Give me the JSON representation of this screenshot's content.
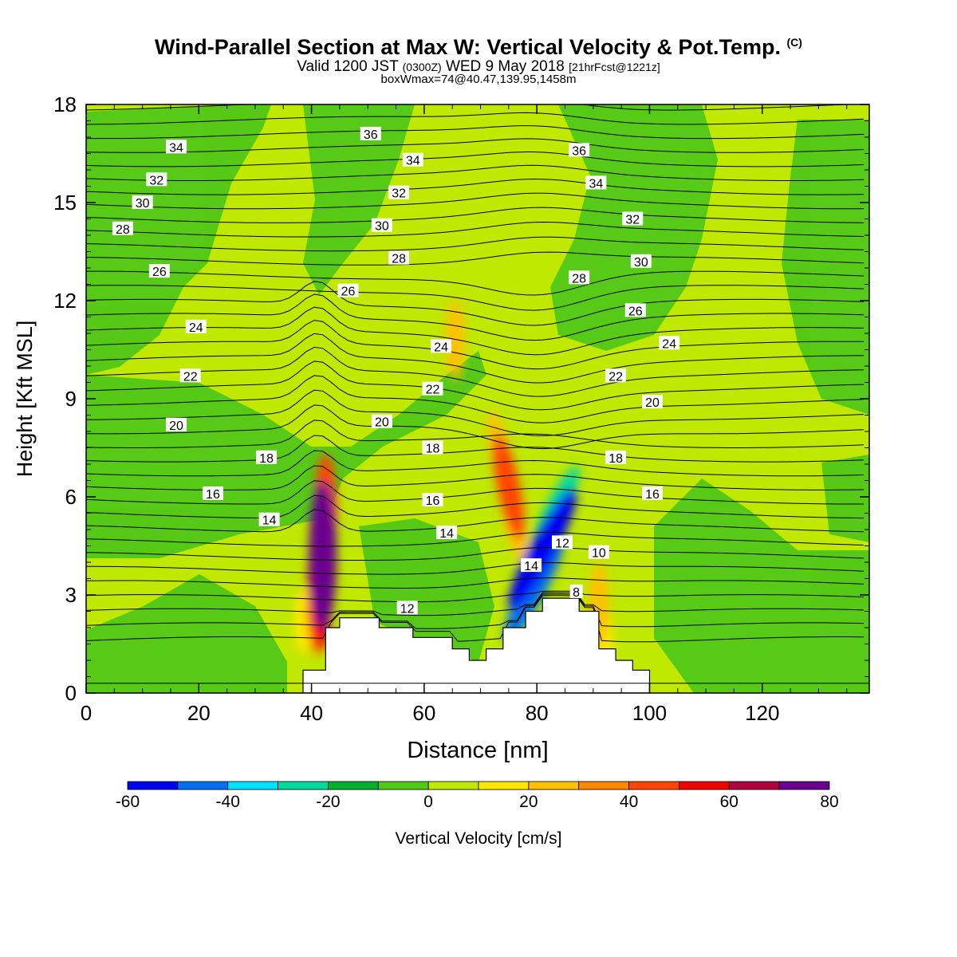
{
  "header": {
    "title_main": "Wind-Parallel Section at Max W: Vertical Velocity & Pot.Temp.",
    "title_mark": "(C)",
    "subtitle_a": "Valid 1200 JST",
    "subtitle_b": "(0300Z)",
    "subtitle_c": "WED 9 May 2018",
    "subtitle_d": "[21hrFcst@1221z]",
    "subtitle_line3": "boxWmax=74@40.47,139.95,1458m"
  },
  "chart_data": {
    "type": "heatmap",
    "xlabel": "Distance [nm]",
    "ylabel": "Height [Kft MSL]",
    "xlim": [
      0,
      139
    ],
    "ylim": [
      0,
      18
    ],
    "x_ticks": [
      0,
      20,
      40,
      60,
      80,
      100,
      120
    ],
    "y_ticks": [
      0,
      3,
      6,
      9,
      12,
      15,
      18
    ],
    "colorbar": {
      "label": "Vertical Velocity [cm/s]",
      "range": [
        -60,
        80
      ],
      "step": 10,
      "tick_labels": [
        "-60",
        "-40",
        "-20",
        "0",
        "20",
        "40",
        "60",
        "80"
      ],
      "colors": [
        "#0000f0",
        "#0070f0",
        "#00e0ff",
        "#00d8a0",
        "#00b030",
        "#50c818",
        "#c0e800",
        "#ffe800",
        "#ffc000",
        "#ff8800",
        "#ff4400",
        "#f00000",
        "#b00040",
        "#6a0090"
      ]
    },
    "terrain": [
      [
        38.5,
        0.7
      ],
      [
        39.5,
        0.7
      ],
      [
        39.5,
        0.7
      ],
      [
        42.5,
        0.7
      ],
      [
        42.5,
        2
      ],
      [
        45,
        2
      ],
      [
        45,
        2.3
      ],
      [
        52,
        2.3
      ],
      [
        52,
        2
      ],
      [
        58,
        2
      ],
      [
        58,
        1.7
      ],
      [
        65,
        1.7
      ],
      [
        65,
        1.35
      ],
      [
        68,
        1.35
      ],
      [
        68,
        1
      ],
      [
        71,
        1
      ],
      [
        71,
        1.35
      ],
      [
        74,
        1.35
      ],
      [
        74,
        2
      ],
      [
        78,
        2
      ],
      [
        78,
        2.5
      ],
      [
        81,
        2.5
      ],
      [
        81,
        2.9
      ],
      [
        87.5,
        2.9
      ],
      [
        87.5,
        2.5
      ],
      [
        91,
        2.5
      ],
      [
        91,
        1.35
      ],
      [
        94,
        1.35
      ],
      [
        94,
        1
      ],
      [
        97,
        1
      ],
      [
        97,
        0.7
      ],
      [
        100,
        0.7
      ],
      [
        100,
        0.3
      ]
    ],
    "w_cells": [
      {
        "x": 42,
        "y": 4.2,
        "w": 70
      },
      {
        "x": 41.5,
        "y": 3.2,
        "w": 55
      },
      {
        "x": 42.5,
        "y": 5.6,
        "w": 45
      },
      {
        "x": 41,
        "y": 2.6,
        "w": 32
      },
      {
        "x": 38.5,
        "y": 2.2,
        "w": 12
      },
      {
        "x": 75,
        "y": 6.3,
        "w": 42
      },
      {
        "x": 73.5,
        "y": 7.4,
        "w": 22
      },
      {
        "x": 76,
        "y": 5.2,
        "w": 20
      },
      {
        "x": 81,
        "y": 4.4,
        "w": -62
      },
      {
        "x": 79.5,
        "y": 3.2,
        "w": -50
      },
      {
        "x": 83.5,
        "y": 5.7,
        "w": -30
      },
      {
        "x": 78,
        "y": 2.6,
        "w": -22
      },
      {
        "x": 91,
        "y": 2.7,
        "w": 25
      },
      {
        "x": 92,
        "y": 1.5,
        "w": 15
      },
      {
        "x": 65.5,
        "y": 10.8,
        "w": 22
      }
    ],
    "theta_labels": [
      {
        "x": 16,
        "y": 16.7,
        "v": "34"
      },
      {
        "x": 12.5,
        "y": 15.7,
        "v": "32"
      },
      {
        "x": 10,
        "y": 15,
        "v": "30"
      },
      {
        "x": 6.5,
        "y": 14.2,
        "v": "28"
      },
      {
        "x": 13,
        "y": 12.9,
        "v": "26"
      },
      {
        "x": 19.5,
        "y": 11.2,
        "v": "24"
      },
      {
        "x": 18.5,
        "y": 9.7,
        "v": "22"
      },
      {
        "x": 16,
        "y": 8.2,
        "v": "20"
      },
      {
        "x": 32,
        "y": 7.2,
        "v": "18"
      },
      {
        "x": 22.5,
        "y": 6.1,
        "v": "16"
      },
      {
        "x": 32.5,
        "y": 5.3,
        "v": "14"
      },
      {
        "x": 50.5,
        "y": 17.1,
        "v": "36"
      },
      {
        "x": 58,
        "y": 16.3,
        "v": "34"
      },
      {
        "x": 55.5,
        "y": 15.3,
        "v": "32"
      },
      {
        "x": 52.5,
        "y": 14.3,
        "v": "30"
      },
      {
        "x": 55.5,
        "y": 13.3,
        "v": "28"
      },
      {
        "x": 46.5,
        "y": 12.3,
        "v": "26"
      },
      {
        "x": 63,
        "y": 10.6,
        "v": "24"
      },
      {
        "x": 61.5,
        "y": 9.3,
        "v": "22"
      },
      {
        "x": 52.5,
        "y": 8.3,
        "v": "20"
      },
      {
        "x": 61.5,
        "y": 7.5,
        "v": "18"
      },
      {
        "x": 61.5,
        "y": 5.9,
        "v": "16"
      },
      {
        "x": 64,
        "y": 4.9,
        "v": "14"
      },
      {
        "x": 57,
        "y": 2.6,
        "v": "12"
      },
      {
        "x": 87.5,
        "y": 16.6,
        "v": "36"
      },
      {
        "x": 90.5,
        "y": 15.6,
        "v": "34"
      },
      {
        "x": 97,
        "y": 14.5,
        "v": "32"
      },
      {
        "x": 98.5,
        "y": 13.2,
        "v": "30"
      },
      {
        "x": 87.5,
        "y": 12.7,
        "v": "28"
      },
      {
        "x": 97.5,
        "y": 11.7,
        "v": "26"
      },
      {
        "x": 103.5,
        "y": 10.7,
        "v": "24"
      },
      {
        "x": 94,
        "y": 9.7,
        "v": "22"
      },
      {
        "x": 100.5,
        "y": 8.9,
        "v": "20"
      },
      {
        "x": 94,
        "y": 7.2,
        "v": "18"
      },
      {
        "x": 100.5,
        "y": 6.1,
        "v": "16"
      },
      {
        "x": 84.5,
        "y": 4.6,
        "v": "12"
      },
      {
        "x": 91,
        "y": 4.3,
        "v": "10"
      },
      {
        "x": 79,
        "y": 3.9,
        "v": "14"
      },
      {
        "x": 87,
        "y": 3.1,
        "v": "8"
      }
    ]
  }
}
